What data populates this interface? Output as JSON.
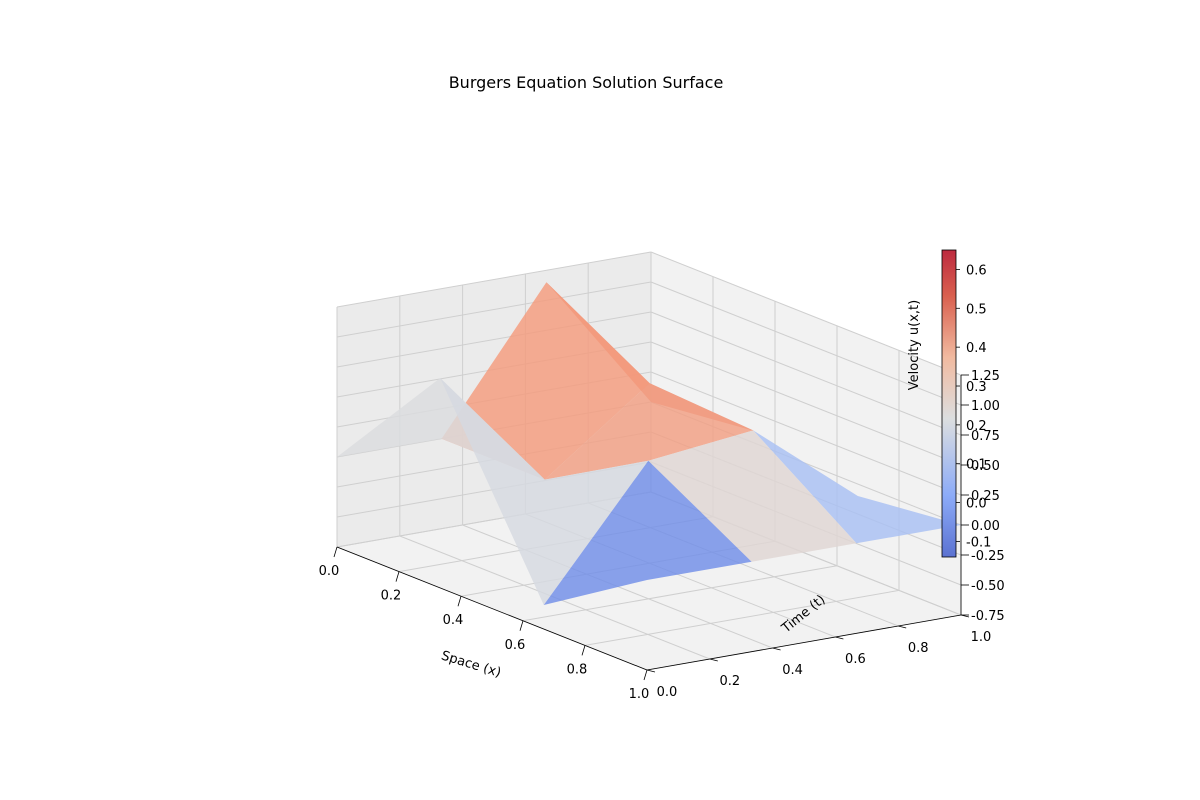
{
  "chart_data": {
    "type": "surface3d",
    "title": "Burgers Equation Solution Surface",
    "xlabel": "Space (x)",
    "ylabel": "Time (t)",
    "zlabel": "Velocity u(x,t)",
    "xlim": [
      0,
      1
    ],
    "ylim": [
      0,
      1
    ],
    "zlim": [
      -0.75,
      1.25
    ],
    "xticks": [
      "0.0",
      "0.2",
      "0.4",
      "0.6",
      "0.8",
      "1.0"
    ],
    "yticks": [
      "0.0",
      "0.2",
      "0.4",
      "0.6",
      "0.8",
      "1.0"
    ],
    "zticks": [
      "-0.75",
      "-0.50",
      "-0.25",
      "0.00",
      "0.25",
      "0.50",
      "0.75",
      "1.00",
      "1.25"
    ],
    "grid": true,
    "colormap": "coolwarm",
    "colorbar": {
      "min": -0.14,
      "max": 0.65,
      "ticks": [
        "-0.1",
        "0.0",
        "0.1",
        "0.2",
        "0.3",
        "0.4",
        "0.5",
        "0.6"
      ]
    },
    "x": [
      0.0,
      0.333,
      0.667,
      1.0
    ],
    "t": [
      0.0,
      0.333,
      0.667,
      1.0
    ],
    "u": [
      [
        0.0,
        1.0,
        -0.55,
        0.0
      ],
      [
        0.0,
        0.0,
        0.5,
        0.0
      ],
      [
        1.15,
        0.65,
        0.6,
        0.0
      ],
      [
        0.0,
        0.1,
        -0.1,
        0.0
      ]
    ]
  },
  "colors": {
    "pane": "#f2f2f2",
    "pane_dark": "#ebebeb",
    "grid": "#cfcfcf"
  }
}
